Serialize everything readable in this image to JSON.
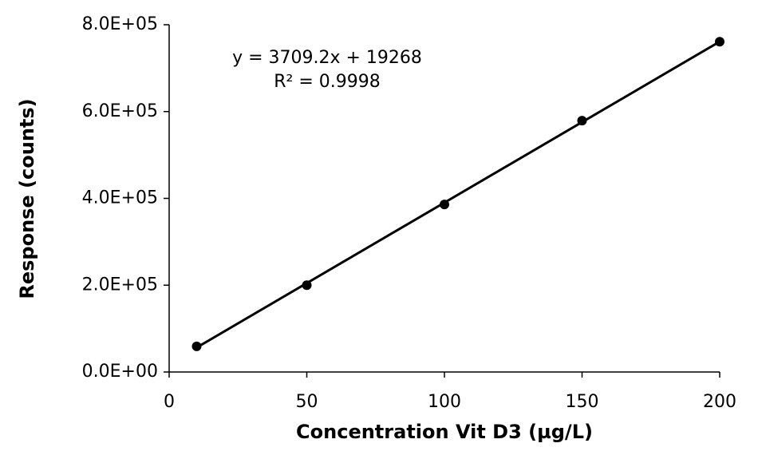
{
  "chart_data": {
    "type": "scatter",
    "x_label": "Concentration Vit D3 (µg/L)",
    "y_label": "Response (counts)",
    "series": [
      {
        "name": "Vit D3",
        "color": "#000000",
        "x": [
          10,
          50,
          100,
          150,
          200
        ],
        "values": [
          59000,
          200000,
          386000,
          579000,
          761000
        ]
      }
    ],
    "trendline": {
      "slope": 3709.2,
      "intercept": 19268,
      "color": "#000000",
      "label": "y = 3709.2x + 19268",
      "r2_label": "R² = 0.9998"
    },
    "xlim": [
      0,
      200
    ],
    "xticks": [
      0,
      50,
      100,
      150,
      200
    ],
    "ylim": [
      0,
      800000
    ],
    "yticks": [
      {
        "value": 0,
        "label": "0.0E+00"
      },
      {
        "value": 200000,
        "label": "2.0E+05"
      },
      {
        "value": 400000,
        "label": "4.0E+05"
      },
      {
        "value": 600000,
        "label": "6.0E+05"
      },
      {
        "value": 800000,
        "label": "8.0E+05"
      }
    ],
    "grid": false
  }
}
